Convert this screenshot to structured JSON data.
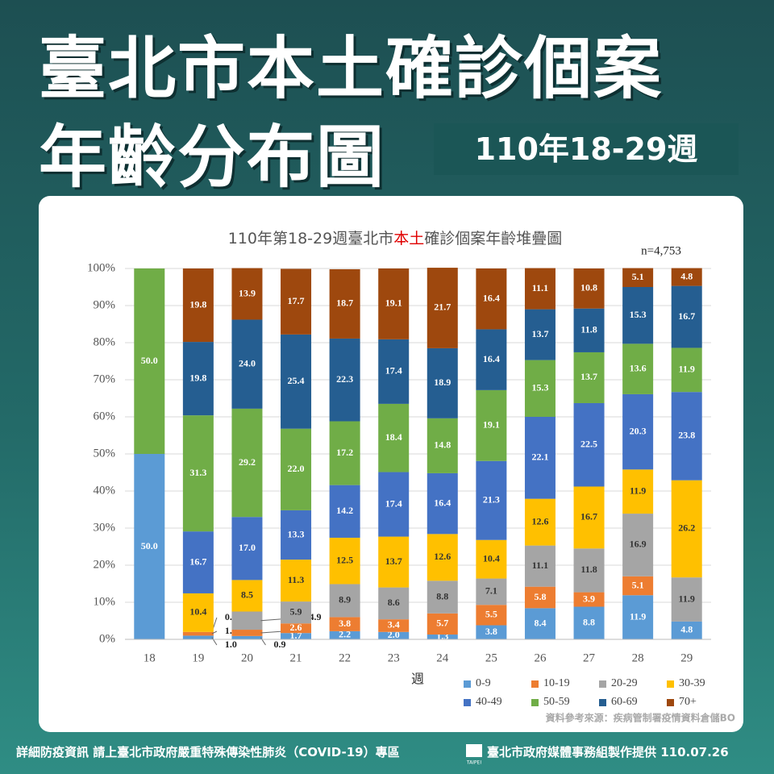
{
  "header": {
    "title_line1": "臺北市本土確診個案",
    "title_line2": "年齡分布圖",
    "badge": "110年18-29週"
  },
  "chart_data": {
    "type": "stacked_bar",
    "title_parts": [
      "110年第18-29週臺北市",
      "本土",
      "確診個案年齡堆疊圖"
    ],
    "annotation": "n=4,753",
    "x_label": "週",
    "source": "資料參考來源：疾病管制署疫情資料倉儲BO",
    "categories": [
      "18",
      "19",
      "20",
      "21",
      "22",
      "23",
      "24",
      "25",
      "26",
      "27",
      "28",
      "29"
    ],
    "ylim": [
      0,
      100
    ],
    "yticks": [
      {
        "value": 0,
        "label": "0%"
      },
      {
        "value": 10,
        "label": "10%"
      },
      {
        "value": 20,
        "label": "20%"
      },
      {
        "value": 30,
        "label": "30%"
      },
      {
        "value": 40,
        "label": "40%"
      },
      {
        "value": 50,
        "label": "50%"
      },
      {
        "value": 60,
        "label": "60%"
      },
      {
        "value": 70,
        "label": "70%"
      },
      {
        "value": 80,
        "label": "80%"
      },
      {
        "value": 90,
        "label": "90%"
      },
      {
        "value": 100,
        "label": "100%"
      }
    ],
    "series": [
      {
        "name": "0-9",
        "color": "#5b9bd5",
        "values": [
          50.0,
          1.0,
          0.9,
          1.7,
          2.2,
          2.0,
          1.3,
          3.8,
          8.4,
          8.8,
          11.9,
          4.8
        ],
        "value_labels": [
          "50.0",
          "1.0",
          "0.9",
          "1.7",
          "2.2",
          "2.0",
          "1.3",
          "3.8",
          "8.4",
          "8.8",
          "11.9",
          "4.8"
        ]
      },
      {
        "name": "10-19",
        "color": "#ed7d31",
        "values": [
          0,
          1.0,
          1.7,
          2.6,
          3.8,
          3.4,
          5.7,
          5.5,
          5.8,
          3.9,
          5.1,
          0
        ],
        "value_labels": [
          null,
          "1.0",
          "1.7",
          "2.6",
          "3.8",
          "3.4",
          "5.7",
          "5.5",
          "5.8",
          "3.9",
          "5.1",
          null
        ]
      },
      {
        "name": "20-29",
        "color": "#a5a5a5",
        "values": [
          0,
          0.0,
          4.9,
          5.9,
          8.9,
          8.6,
          8.8,
          7.1,
          11.1,
          11.8,
          16.9,
          11.9
        ],
        "value_labels": [
          null,
          "0.0",
          "4.9",
          "5.9",
          "8.9",
          "8.6",
          "8.8",
          "7.1",
          "11.1",
          "11.8",
          "16.9",
          "11.9"
        ]
      },
      {
        "name": "30-39",
        "color": "#ffc000",
        "values": [
          0,
          10.4,
          8.5,
          11.3,
          12.5,
          13.7,
          12.6,
          10.4,
          12.6,
          16.7,
          11.9,
          26.2
        ],
        "value_labels": [
          null,
          "10.4",
          "8.5",
          "11.3",
          "12.5",
          "13.7",
          "12.6",
          "10.4",
          "12.6",
          "16.7",
          "11.9",
          "26.2"
        ]
      },
      {
        "name": "40-49",
        "color": "#4472c4",
        "values": [
          0,
          16.7,
          17.0,
          13.3,
          14.2,
          17.4,
          16.4,
          21.3,
          22.1,
          22.5,
          20.3,
          23.8
        ],
        "value_labels": [
          null,
          "16.7",
          "17.0",
          "13.3",
          "14.2",
          "17.4",
          "16.4",
          "21.3",
          "22.1",
          "22.5",
          "20.3",
          "23.8"
        ]
      },
      {
        "name": "50-59",
        "color": "#70ad47",
        "values": [
          50.0,
          31.3,
          29.2,
          22.0,
          17.2,
          18.4,
          14.8,
          19.1,
          15.3,
          13.7,
          13.6,
          11.9
        ],
        "value_labels": [
          "50.0",
          "31.3",
          "29.2",
          "22.0",
          "17.2",
          "18.4",
          "14.8",
          "19.1",
          "15.3",
          "13.7",
          "13.6",
          "11.9"
        ]
      },
      {
        "name": "60-69",
        "color": "#255e91",
        "values": [
          0,
          19.8,
          24.0,
          25.4,
          22.3,
          17.4,
          18.9,
          16.4,
          13.7,
          11.8,
          15.3,
          16.7
        ],
        "value_labels": [
          null,
          "19.8",
          "24.0",
          "25.4",
          "22.3",
          "17.4",
          "18.9",
          "16.4",
          "13.7",
          "11.8",
          "15.3",
          "16.7"
        ]
      },
      {
        "name": "70+",
        "color": "#9e480e",
        "values": [
          0,
          19.8,
          13.9,
          17.7,
          18.7,
          19.1,
          21.7,
          16.4,
          11.1,
          10.8,
          5.1,
          4.8
        ],
        "value_labels": [
          null,
          "19.8",
          "13.9",
          "17.7",
          "18.7",
          "19.1",
          "21.7",
          "16.4",
          "11.1",
          "10.8",
          "5.1",
          "4.8"
        ]
      }
    ]
  },
  "footer": {
    "left": "詳細防疫資訊 請上臺北市政府嚴重特殊傳染性肺炎（COVID-19）專區",
    "logo_text": "TAIPEI",
    "right": "臺北市政府媒體事務組製作提供 110.07.26"
  }
}
